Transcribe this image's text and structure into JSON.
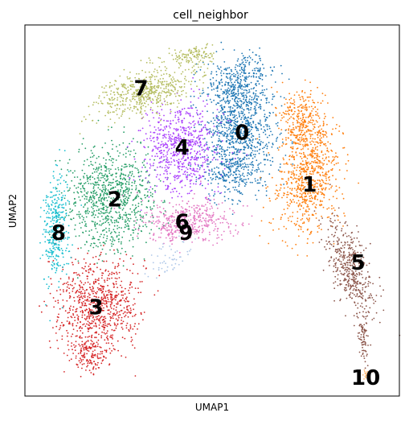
{
  "chart_data": {
    "type": "scatter",
    "title": "cell_neighbor",
    "xlabel": "UMAP1",
    "ylabel": "UMAP2",
    "xticks": false,
    "yticks": false,
    "grid": false,
    "legend": "on data",
    "series": [
      {
        "name": "0",
        "color": "#1f77b4",
        "center": [
          0.58,
          0.71
        ]
      },
      {
        "name": "1",
        "color": "#ff7f0e",
        "center": [
          0.76,
          0.57
        ]
      },
      {
        "name": "2",
        "color": "#279e68",
        "center": [
          0.24,
          0.53
        ]
      },
      {
        "name": "3",
        "color": "#d62728",
        "center": [
          0.19,
          0.24
        ]
      },
      {
        "name": "4",
        "color": "#aa40fc",
        "center": [
          0.42,
          0.67
        ]
      },
      {
        "name": "5",
        "color": "#8c564b",
        "center": [
          0.89,
          0.36
        ]
      },
      {
        "name": "6",
        "color": "#e377c2",
        "center": [
          0.42,
          0.47
        ]
      },
      {
        "name": "7",
        "color": "#b5bd61",
        "center": [
          0.31,
          0.83
        ]
      },
      {
        "name": "8",
        "color": "#17becf",
        "center": [
          0.09,
          0.44
        ]
      },
      {
        "name": "9",
        "color": "#aec7e8",
        "center": [
          0.43,
          0.44
        ]
      },
      {
        "name": "10",
        "color": "#ffbb78",
        "center": [
          0.91,
          0.05
        ]
      }
    ]
  }
}
